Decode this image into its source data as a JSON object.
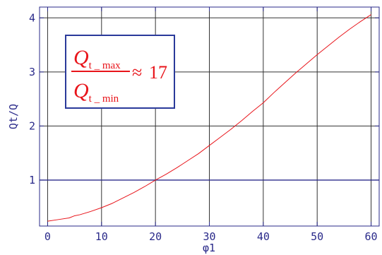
{
  "chart_data": {
    "type": "line",
    "xlabel": "φ1",
    "ylabel": "Qt/Q",
    "xlim": [
      -1.5,
      61.5
    ],
    "ylim": [
      0.15,
      4.2
    ],
    "xticks": [
      0,
      10,
      20,
      30,
      40,
      50,
      60
    ],
    "yticks": [
      1,
      2,
      3,
      4
    ],
    "grid": true,
    "series": [
      {
        "color": "#e8141a",
        "x": [
          0,
          2,
          4,
          5,
          6,
          8,
          10,
          12,
          14,
          16,
          18,
          20,
          22,
          24,
          26,
          28,
          30,
          32,
          34,
          36,
          38,
          40,
          42,
          44,
          46,
          48,
          50,
          52,
          54,
          56,
          58,
          60
        ],
        "y": [
          0.24,
          0.27,
          0.3,
          0.34,
          0.36,
          0.42,
          0.49,
          0.57,
          0.67,
          0.77,
          0.88,
          1.0,
          1.11,
          1.23,
          1.36,
          1.49,
          1.64,
          1.79,
          1.94,
          2.1,
          2.27,
          2.43,
          2.62,
          2.8,
          2.98,
          3.15,
          3.32,
          3.48,
          3.64,
          3.79,
          3.93,
          4.06
        ]
      }
    ],
    "annotation": {
      "numerator": "Q",
      "numerator_sub": "t _ max",
      "denominator": "Q",
      "denominator_sub": "t _ min",
      "relation": "≈",
      "value": "17"
    }
  },
  "colors": {
    "axis": "#2a2a8a",
    "grid": "#333333",
    "highlight_grid": "#2a2a8a",
    "line": "#e8141a",
    "annotation_border": "#2a3a9a",
    "annotation_text": "#e8141a"
  }
}
